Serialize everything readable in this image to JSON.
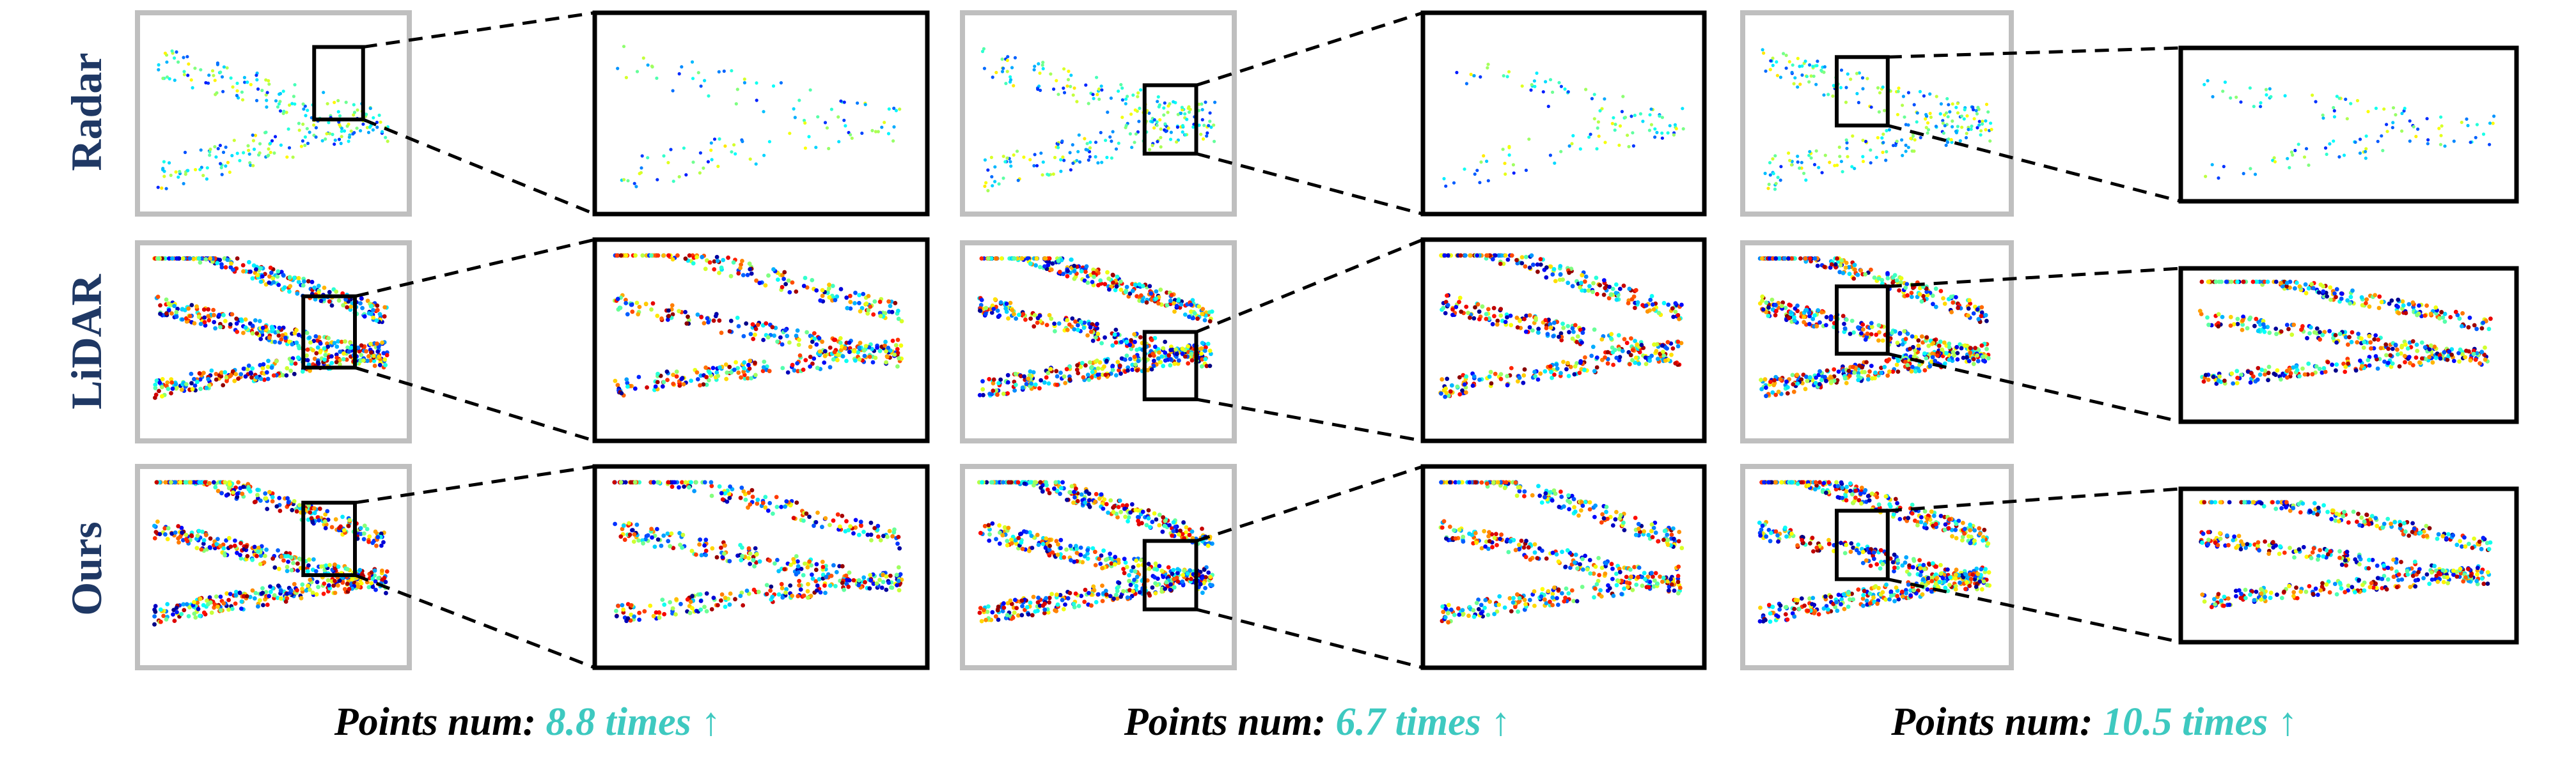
{
  "figure": {
    "row_labels": [
      "Radar",
      "LiDAR",
      "Ours"
    ],
    "captions": [
      {
        "prefix": "Points num:",
        "value": "8.8 times",
        "arrow": "↑"
      },
      {
        "prefix": "Points num:",
        "value": "6.7 times",
        "arrow": "↑"
      },
      {
        "prefix": "Points num:",
        "value": "10.5 times",
        "arrow": "↑"
      }
    ],
    "colors": {
      "row_label": "#1f3864",
      "caption_text": "#000000",
      "accent": "#3ec9c0",
      "panel_border": "#bfbfbf",
      "zoom_border": "#000000",
      "colormap": "jet (blue-cyan-green-yellow-red)"
    }
  }
}
